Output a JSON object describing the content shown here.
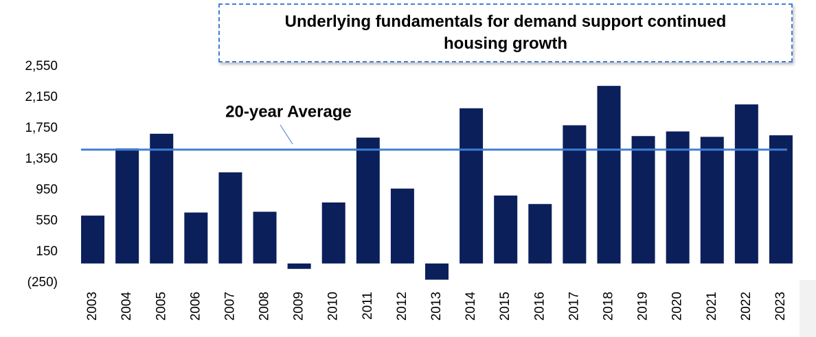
{
  "chart_data": {
    "type": "bar",
    "title": "Underlying fundamentals for demand support continued housing growth",
    "categories": [
      "2003",
      "2004",
      "2005",
      "2006",
      "2007",
      "2008",
      "2009",
      "2010",
      "2011",
      "2012",
      "2013",
      "2014",
      "2015",
      "2016",
      "2017",
      "2018",
      "2019",
      "2020",
      "2021",
      "2022",
      "2023"
    ],
    "values": [
      620,
      1490,
      1680,
      660,
      1180,
      670,
      -70,
      790,
      1630,
      970,
      -210,
      2010,
      880,
      770,
      1790,
      2300,
      1650,
      1710,
      1640,
      2060,
      1660
    ],
    "color": "#0b1f5b",
    "ylim": [
      -250,
      2550
    ],
    "yticks": [
      {
        "value": -250,
        "label": "(250)"
      },
      150,
      550,
      950,
      {
        "value": 1350,
        "label": "1,350"
      },
      {
        "value": 1750,
        "label": "1,750"
      },
      {
        "value": 2150,
        "label": "2,150"
      },
      {
        "value": 2550,
        "label": "2,550"
      }
    ],
    "average": {
      "value": 1475,
      "label": "20-year Average",
      "color": "#3f7fd6"
    }
  }
}
